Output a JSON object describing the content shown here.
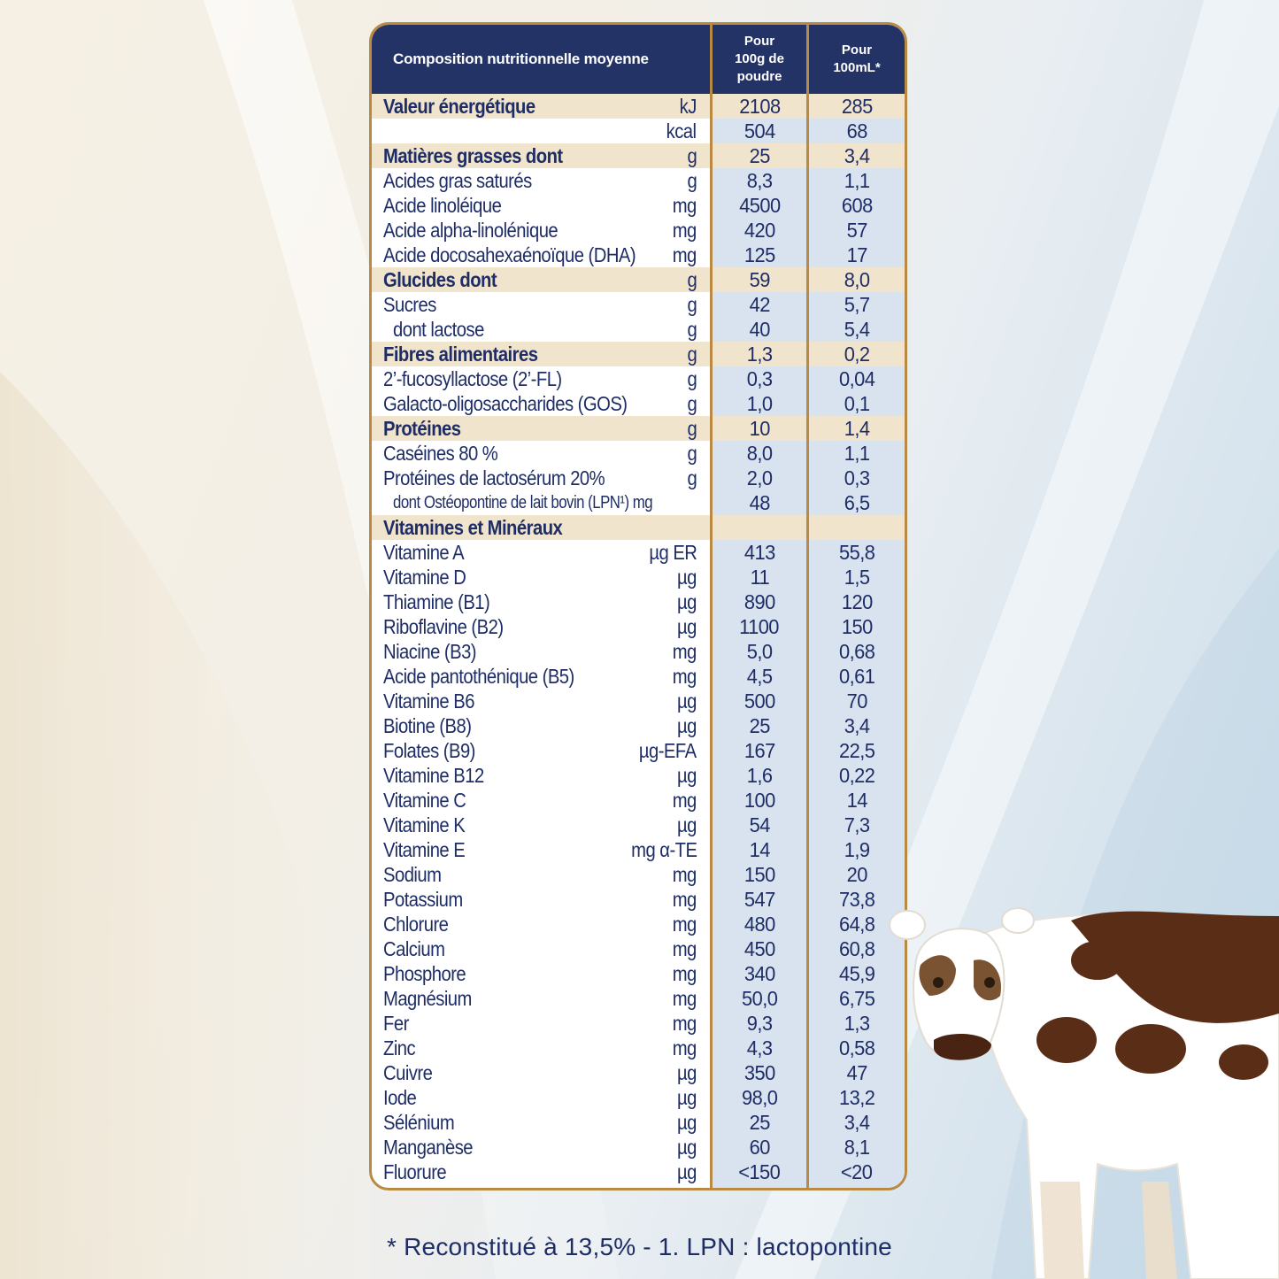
{
  "header": {
    "title": "Composition nutritionnelle moyenne",
    "col1": "Pour\n100g de\npoudre",
    "col2": "Pour\n100mL*"
  },
  "rows": [
    {
      "label": "Valeur énergétique",
      "unit": "kJ",
      "v1": "2108",
      "v2": "285",
      "style": "bold hl"
    },
    {
      "label": "",
      "unit": "kcal",
      "v1": "504",
      "v2": "68",
      "style": ""
    },
    {
      "label": "Matières grasses dont",
      "unit": "g",
      "v1": "25",
      "v2": "3,4",
      "style": "bold hl"
    },
    {
      "label": "Acides gras saturés",
      "unit": "g",
      "v1": "8,3",
      "v2": "1,1",
      "style": ""
    },
    {
      "label": "Acide linoléique",
      "unit": "mg",
      "v1": "4500",
      "v2": "608",
      "style": ""
    },
    {
      "label": "Acide alpha-linolénique",
      "unit": "mg",
      "v1": "420",
      "v2": "57",
      "style": ""
    },
    {
      "label": "Acide docosahexaénoïque (DHA)",
      "unit": "mg",
      "v1": "125",
      "v2": "17",
      "style": ""
    },
    {
      "label": "Glucides dont",
      "unit": "g",
      "v1": "59",
      "v2": "8,0",
      "style": "bold hl"
    },
    {
      "label": "Sucres",
      "unit": "g",
      "v1": "42",
      "v2": "5,7",
      "style": ""
    },
    {
      "label": "dont lactose",
      "unit": "g",
      "v1": "40",
      "v2": "5,4",
      "style": "indent"
    },
    {
      "label": "Fibres alimentaires",
      "unit": "g",
      "v1": "1,3",
      "v2": "0,2",
      "style": "bold hl"
    },
    {
      "label": "2’-fucosyllactose (2’-FL)",
      "unit": "g",
      "v1": "0,3",
      "v2": "0,04",
      "style": ""
    },
    {
      "label": "Galacto-oligosaccharides (GOS)",
      "unit": "g",
      "v1": "1,0",
      "v2": "0,1",
      "style": ""
    },
    {
      "label": "Protéines",
      "unit": "g",
      "v1": "10",
      "v2": "1,4",
      "style": "bold hl"
    },
    {
      "label": "Caséines 80 %",
      "unit": "g",
      "v1": "8,0",
      "v2": "1,1",
      "style": ""
    },
    {
      "label": "Protéines de lactosérum 20%",
      "unit": "g",
      "v1": "2,0",
      "v2": "0,3",
      "style": ""
    },
    {
      "label": "dont Ostéopontine de lait bovin (LPN¹) mg",
      "unit": "",
      "v1": "48",
      "v2": "6,5",
      "style": "indent small"
    },
    {
      "label": "Vitamines et Minéraux",
      "unit": "",
      "v1": "",
      "v2": "",
      "style": "bold hl"
    },
    {
      "label": "Vitamine A",
      "unit": "µg ER",
      "v1": "413",
      "v2": "55,8",
      "style": ""
    },
    {
      "label": "Vitamine D",
      "unit": "µg",
      "v1": "11",
      "v2": "1,5",
      "style": ""
    },
    {
      "label": "Thiamine (B1)",
      "unit": "µg",
      "v1": "890",
      "v2": "120",
      "style": ""
    },
    {
      "label": "Riboflavine (B2)",
      "unit": "µg",
      "v1": "1100",
      "v2": "150",
      "style": ""
    },
    {
      "label": "Niacine (B3)",
      "unit": "mg",
      "v1": "5,0",
      "v2": "0,68",
      "style": ""
    },
    {
      "label": "Acide pantothénique (B5)",
      "unit": "mg",
      "v1": "4,5",
      "v2": "0,61",
      "style": ""
    },
    {
      "label": "Vitamine B6",
      "unit": "µg",
      "v1": "500",
      "v2": "70",
      "style": ""
    },
    {
      "label": "Biotine (B8)",
      "unit": "µg",
      "v1": "25",
      "v2": "3,4",
      "style": ""
    },
    {
      "label": "Folates (B9)",
      "unit": "µg-EFA",
      "v1": "167",
      "v2": "22,5",
      "style": ""
    },
    {
      "label": "Vitamine B12",
      "unit": "µg",
      "v1": "1,6",
      "v2": "0,22",
      "style": ""
    },
    {
      "label": "Vitamine C",
      "unit": "mg",
      "v1": "100",
      "v2": "14",
      "style": ""
    },
    {
      "label": "Vitamine K",
      "unit": "µg",
      "v1": "54",
      "v2": "7,3",
      "style": ""
    },
    {
      "label": "Vitamine E",
      "unit": "mg α-TE",
      "v1": "14",
      "v2": "1,9",
      "style": ""
    },
    {
      "label": "Sodium",
      "unit": "mg",
      "v1": "150",
      "v2": "20",
      "style": ""
    },
    {
      "label": "Potassium",
      "unit": "mg",
      "v1": "547",
      "v2": "73,8",
      "style": ""
    },
    {
      "label": "Chlorure",
      "unit": "mg",
      "v1": "480",
      "v2": "64,8",
      "style": ""
    },
    {
      "label": "Calcium",
      "unit": "mg",
      "v1": "450",
      "v2": "60,8",
      "style": ""
    },
    {
      "label": "Phosphore",
      "unit": "mg",
      "v1": "340",
      "v2": "45,9",
      "style": ""
    },
    {
      "label": "Magnésium",
      "unit": "mg",
      "v1": "50,0",
      "v2": "6,75",
      "style": ""
    },
    {
      "label": "Fer",
      "unit": "mg",
      "v1": "9,3",
      "v2": "1,3",
      "style": ""
    },
    {
      "label": "Zinc",
      "unit": "mg",
      "v1": "4,3",
      "v2": "0,58",
      "style": ""
    },
    {
      "label": "Cuivre",
      "unit": "µg",
      "v1": "350",
      "v2": "47",
      "style": ""
    },
    {
      "label": "Iode",
      "unit": "µg",
      "v1": "98,0",
      "v2": "13,2",
      "style": ""
    },
    {
      "label": "Sélénium",
      "unit": "µg",
      "v1": "25",
      "v2": "3,4",
      "style": ""
    },
    {
      "label": "Manganèse",
      "unit": "µg",
      "v1": "60",
      "v2": "8,1",
      "style": ""
    },
    {
      "label": "Fluorure",
      "unit": "µg",
      "v1": "<150",
      "v2": "<20",
      "style": ""
    }
  ],
  "footnote": "* Reconstitué à 13,5% - 1. LPN : lactopontine",
  "colors": {
    "navy": "#233366",
    "gold": "#b98a43",
    "highlight": "#f0e4cc",
    "column": "#d8e3ef",
    "text": "#1f2d66"
  },
  "illustration": "cow-icon"
}
